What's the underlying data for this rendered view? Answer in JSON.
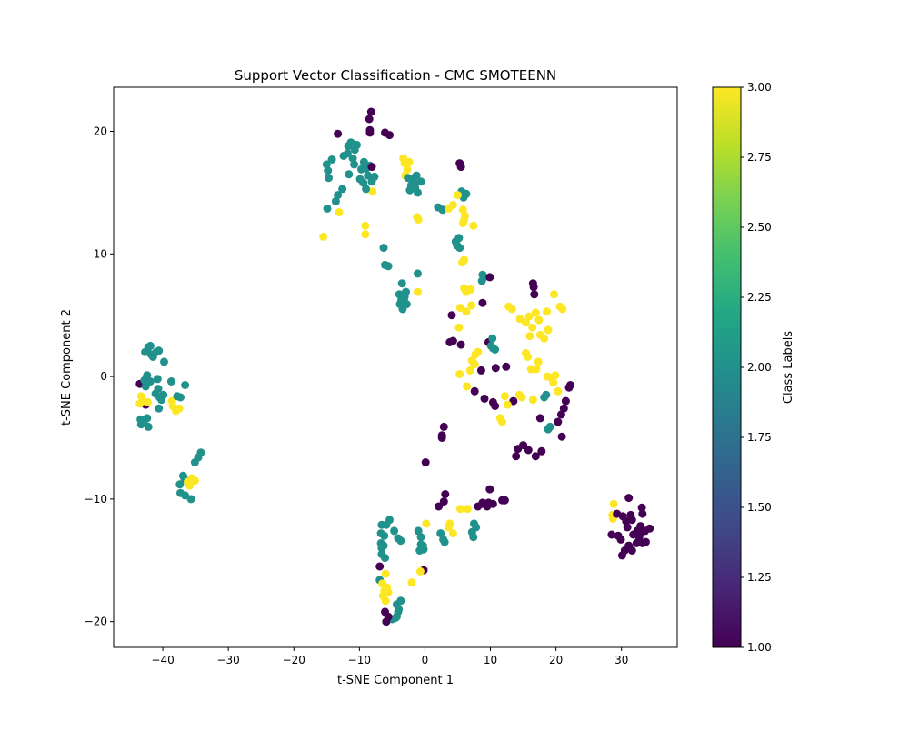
{
  "chart_data": {
    "type": "scatter",
    "title": "Support Vector Classification - CMC SMOTEENN",
    "xlabel": "t-SNE Component 1",
    "ylabel": "t-SNE Component 2",
    "xlim": [
      -47.5,
      38.5
    ],
    "ylim": [
      -22.1,
      23.6
    ],
    "xticks": [
      -40,
      -30,
      -20,
      -10,
      0,
      10,
      20,
      30
    ],
    "yticks": [
      -20,
      -10,
      0,
      10,
      20
    ],
    "xtick_labels": [
      "−40",
      "−30",
      "−20",
      "−10",
      "0",
      "10",
      "20",
      "30"
    ],
    "ytick_labels": [
      "−20",
      "−10",
      "0",
      "10",
      "20"
    ],
    "grid": false,
    "colormap": "viridis",
    "colors": {
      "class_1": "#440154",
      "class_2": "#21918c",
      "class_3": "#fde725"
    },
    "colorbar": {
      "label": "Class Labels",
      "range": [
        1.0,
        3.0
      ],
      "ticks": [
        1.0,
        1.25,
        1.5,
        1.75,
        2.0,
        2.25,
        2.5,
        2.75,
        3.0
      ],
      "tick_labels": [
        "1.00",
        "1.25",
        "1.50",
        "1.75",
        "2.00",
        "2.25",
        "2.50",
        "2.75",
        "3.00"
      ]
    },
    "points": [
      [
        -43.5,
        -0.6,
        1
      ],
      [
        -42.6,
        -2.3,
        1
      ],
      [
        -43.3,
        -1.6,
        3
      ],
      [
        -43.5,
        -2.2,
        3
      ],
      [
        -43.0,
        -2.0,
        3
      ],
      [
        -42.3,
        -2.1,
        3
      ],
      [
        -38.5,
        -2.4,
        3
      ],
      [
        -38.0,
        -2.8,
        3
      ],
      [
        -37.5,
        -2.6,
        3
      ],
      [
        -38.6,
        -2.0,
        3
      ],
      [
        -42.7,
        2.0,
        2
      ],
      [
        -42.2,
        2.4,
        2
      ],
      [
        -41.8,
        1.8,
        2
      ],
      [
        -41.0,
        2.0,
        2
      ],
      [
        -40.6,
        2.1,
        2
      ],
      [
        -41.9,
        2.5,
        2
      ],
      [
        -39.8,
        1.2,
        2
      ],
      [
        -41.5,
        1.6,
        2
      ],
      [
        -42.8,
        -0.3,
        2
      ],
      [
        -42.4,
        0.1,
        2
      ],
      [
        -41.9,
        -0.4,
        2
      ],
      [
        -42.6,
        -0.8,
        2
      ],
      [
        -40.8,
        -0.2,
        2
      ],
      [
        -40.7,
        -1.0,
        2
      ],
      [
        -41.1,
        -1.4,
        2
      ],
      [
        -40.5,
        -1.7,
        2
      ],
      [
        -40.2,
        -1.9,
        2
      ],
      [
        -39.9,
        -1.5,
        2
      ],
      [
        -40.6,
        -2.6,
        2
      ],
      [
        -38.7,
        -0.4,
        2
      ],
      [
        -37.3,
        -1.7,
        2
      ],
      [
        -36.6,
        -0.7,
        2
      ],
      [
        -37.8,
        -1.6,
        2
      ],
      [
        -43.4,
        -3.5,
        2
      ],
      [
        -42.9,
        -3.8,
        2
      ],
      [
        -42.4,
        -3.4,
        2
      ],
      [
        -42.2,
        -4.1,
        2
      ],
      [
        -43.3,
        -3.9,
        2
      ],
      [
        -34.2,
        -6.2,
        2
      ],
      [
        -34.6,
        -6.6,
        2
      ],
      [
        -35.1,
        -7.0,
        2
      ],
      [
        -36.9,
        -8.1,
        2
      ],
      [
        -37.4,
        -8.8,
        2
      ],
      [
        -37.3,
        -9.5,
        2
      ],
      [
        -36.6,
        -9.7,
        2
      ],
      [
        -35.7,
        -10.0,
        2
      ],
      [
        -36.7,
        -8.4,
        2
      ],
      [
        -35.6,
        -8.3,
        3
      ],
      [
        -36.2,
        -8.6,
        3
      ],
      [
        -35.1,
        -8.5,
        3
      ],
      [
        -35.9,
        -8.9,
        3
      ],
      [
        -15.5,
        11.4,
        3
      ],
      [
        -13.1,
        13.4,
        3
      ],
      [
        -9.1,
        12.3,
        3
      ],
      [
        -9.1,
        11.6,
        3
      ],
      [
        -8.0,
        15.1,
        3
      ],
      [
        -3.3,
        17.8,
        3
      ],
      [
        -3.1,
        17.4,
        3
      ],
      [
        -2.7,
        16.9,
        3
      ],
      [
        -2.4,
        17.5,
        3
      ],
      [
        -3.0,
        16.4,
        3
      ],
      [
        -1.2,
        13.0,
        3
      ],
      [
        -1.0,
        12.8,
        3
      ],
      [
        -1.1,
        6.9,
        3
      ],
      [
        -14.8,
        16.8,
        2
      ],
      [
        -15.0,
        17.3,
        2
      ],
      [
        -14.7,
        16.2,
        2
      ],
      [
        -14.2,
        17.7,
        2
      ],
      [
        -14.9,
        13.7,
        2
      ],
      [
        -13.6,
        14.3,
        2
      ],
      [
        -13.3,
        14.8,
        2
      ],
      [
        -12.6,
        15.3,
        2
      ],
      [
        -12.4,
        18.0,
        2
      ],
      [
        -11.7,
        18.8,
        2
      ],
      [
        -11.3,
        19.1,
        2
      ],
      [
        -10.7,
        18.5,
        2
      ],
      [
        -11.8,
        18.2,
        2
      ],
      [
        -11.0,
        17.8,
        2
      ],
      [
        -10.8,
        17.3,
        2
      ],
      [
        -9.7,
        16.9,
        2
      ],
      [
        -9.3,
        17.5,
        2
      ],
      [
        -8.9,
        17.0,
        2
      ],
      [
        -8.4,
        17.2,
        2
      ],
      [
        -8.7,
        16.4,
        2
      ],
      [
        -9.4,
        15.8,
        2
      ],
      [
        -9.0,
        15.3,
        2
      ],
      [
        -8.1,
        15.9,
        2
      ],
      [
        -7.7,
        16.3,
        2
      ],
      [
        -9.9,
        16.1,
        2
      ],
      [
        -10.4,
        18.9,
        2
      ],
      [
        -11.6,
        16.5,
        2
      ],
      [
        -2.6,
        16.2,
        2
      ],
      [
        -2.1,
        15.6,
        2
      ],
      [
        -1.9,
        16.1,
        2
      ],
      [
        -1.3,
        16.4,
        2
      ],
      [
        -1.5,
        15.4,
        2
      ],
      [
        -1.1,
        15.0,
        2
      ],
      [
        -0.6,
        15.9,
        2
      ],
      [
        -2.3,
        15.2,
        2
      ],
      [
        -1.6,
        15.8,
        2
      ],
      [
        -6.3,
        10.5,
        2
      ],
      [
        -6.1,
        9.1,
        2
      ],
      [
        -5.6,
        9.0,
        2
      ],
      [
        -1.1,
        8.4,
        2
      ],
      [
        -3.5,
        7.6,
        2
      ],
      [
        -3.9,
        6.7,
        2
      ],
      [
        -3.6,
        6.2,
        2
      ],
      [
        -3.1,
        6.5,
        2
      ],
      [
        -2.8,
        5.9,
        2
      ],
      [
        -3.4,
        5.5,
        2
      ],
      [
        -2.9,
        6.9,
        2
      ],
      [
        -3.8,
        5.9,
        2
      ],
      [
        -3.2,
        6.2,
        2
      ],
      [
        -8.2,
        21.6,
        1
      ],
      [
        -8.5,
        21.0,
        1
      ],
      [
        -8.4,
        20.1,
        1
      ],
      [
        -8.4,
        19.9,
        1
      ],
      [
        -13.3,
        19.8,
        1
      ],
      [
        -6.1,
        19.9,
        1
      ],
      [
        -5.4,
        19.7,
        1
      ],
      [
        -8.1,
        17.1,
        1
      ],
      [
        2.0,
        13.8,
        2
      ],
      [
        2.7,
        13.6,
        2
      ],
      [
        4.7,
        11.0,
        2
      ],
      [
        5.2,
        11.3,
        2
      ],
      [
        5.3,
        10.5,
        2
      ],
      [
        4.9,
        10.7,
        2
      ],
      [
        5.6,
        15.1,
        2
      ],
      [
        6.3,
        14.9,
        2
      ],
      [
        5.9,
        14.6,
        2
      ],
      [
        8.8,
        8.3,
        2
      ],
      [
        8.7,
        7.8,
        2
      ],
      [
        9.0,
        8.1,
        2
      ],
      [
        5.3,
        17.4,
        1
      ],
      [
        5.5,
        17.1,
        1
      ],
      [
        9.9,
        8.1,
        1
      ],
      [
        8.8,
        6.0,
        1
      ],
      [
        4.1,
        5.0,
        1
      ],
      [
        3.8,
        2.8,
        1
      ],
      [
        4.3,
        2.9,
        1
      ],
      [
        5.5,
        2.6,
        1
      ],
      [
        9.7,
        2.8,
        1
      ],
      [
        3.6,
        13.7,
        3
      ],
      [
        4.3,
        14.0,
        3
      ],
      [
        5.0,
        14.8,
        3
      ],
      [
        5.8,
        13.6,
        3
      ],
      [
        6.1,
        13.1,
        3
      ],
      [
        5.8,
        12.5,
        3
      ],
      [
        6.0,
        12.8,
        3
      ],
      [
        7.4,
        12.3,
        3
      ],
      [
        5.7,
        9.3,
        3
      ],
      [
        6.0,
        9.5,
        3
      ],
      [
        6.0,
        7.2,
        3
      ],
      [
        6.3,
        6.9,
        3
      ],
      [
        7.0,
        7.1,
        3
      ],
      [
        7.1,
        5.8,
        3
      ],
      [
        5.4,
        5.6,
        3
      ],
      [
        6.3,
        5.3,
        3
      ],
      [
        5.2,
        4.0,
        3
      ],
      [
        10.3,
        3.1,
        2
      ],
      [
        10.4,
        2.3,
        2
      ],
      [
        10.7,
        2.2,
        2
      ],
      [
        10.1,
        2.5,
        2
      ],
      [
        18.5,
        -1.5,
        2
      ],
      [
        18.2,
        -1.7,
        2
      ],
      [
        19.1,
        -4.1,
        2
      ],
      [
        18.8,
        -4.3,
        2
      ],
      [
        16.5,
        7.6,
        1
      ],
      [
        16.6,
        7.3,
        1
      ],
      [
        16.7,
        6.7,
        1
      ],
      [
        12.4,
        0.8,
        1
      ],
      [
        10.8,
        0.7,
        1
      ],
      [
        8.6,
        0.5,
        1
      ],
      [
        9.1,
        -1.8,
        1
      ],
      [
        7.6,
        -1.2,
        1
      ],
      [
        10.7,
        -2.4,
        1
      ],
      [
        10.4,
        -2.1,
        1
      ],
      [
        13.5,
        -2.0,
        1
      ],
      [
        17.6,
        -3.4,
        1
      ],
      [
        14.2,
        -5.9,
        1
      ],
      [
        13.9,
        -6.5,
        1
      ],
      [
        15.0,
        -5.6,
        1
      ],
      [
        15.8,
        -6.0,
        1
      ],
      [
        16.9,
        -6.5,
        1
      ],
      [
        17.8,
        -6.1,
        1
      ],
      [
        20.3,
        -3.7,
        1
      ],
      [
        20.8,
        -3.1,
        1
      ],
      [
        21.2,
        -2.6,
        1
      ],
      [
        21.5,
        -2.0,
        1
      ],
      [
        22.2,
        -0.7,
        1
      ],
      [
        22.0,
        -0.9,
        1
      ],
      [
        20.9,
        -4.9,
        1
      ],
      [
        12.8,
        5.7,
        3
      ],
      [
        13.3,
        5.5,
        3
      ],
      [
        14.5,
        4.7,
        3
      ],
      [
        15.4,
        4.4,
        3
      ],
      [
        15.9,
        4.9,
        3
      ],
      [
        16.9,
        5.2,
        3
      ],
      [
        17.4,
        4.6,
        3
      ],
      [
        16.4,
        4.0,
        3
      ],
      [
        18.6,
        5.3,
        3
      ],
      [
        19.7,
        6.7,
        3
      ],
      [
        20.6,
        5.7,
        3
      ],
      [
        21.0,
        5.5,
        3
      ],
      [
        16.0,
        3.3,
        3
      ],
      [
        17.6,
        3.4,
        3
      ],
      [
        18.2,
        3.1,
        3
      ],
      [
        18.8,
        3.8,
        3
      ],
      [
        15.4,
        1.9,
        3
      ],
      [
        15.7,
        1.6,
        3
      ],
      [
        17.3,
        1.2,
        3
      ],
      [
        16.2,
        0.6,
        3
      ],
      [
        17.0,
        0.6,
        3
      ],
      [
        18.7,
        0.0,
        3
      ],
      [
        19.3,
        -0.1,
        3
      ],
      [
        19.9,
        0.1,
        3
      ],
      [
        19.6,
        -0.5,
        3
      ],
      [
        20.3,
        -1.2,
        3
      ],
      [
        7.7,
        1.8,
        3
      ],
      [
        7.2,
        1.3,
        3
      ],
      [
        7.6,
        1.0,
        3
      ],
      [
        6.9,
        0.5,
        3
      ],
      [
        5.3,
        0.2,
        3
      ],
      [
        6.4,
        -0.8,
        3
      ],
      [
        12.2,
        -1.6,
        3
      ],
      [
        12.6,
        -2.3,
        3
      ],
      [
        14.4,
        -1.5,
        3
      ],
      [
        14.8,
        -1.7,
        3
      ],
      [
        16.5,
        -1.9,
        3
      ],
      [
        11.5,
        -3.4,
        3
      ],
      [
        11.8,
        -3.7,
        3
      ],
      [
        8.1,
        2.0,
        3
      ],
      [
        -5.4,
        -11.7,
        2
      ],
      [
        -5.9,
        -12.1,
        2
      ],
      [
        -6.6,
        -12.1,
        2
      ],
      [
        -6.7,
        -12.8,
        2
      ],
      [
        -6.2,
        -13.0,
        2
      ],
      [
        -6.7,
        -13.6,
        2
      ],
      [
        -6.6,
        -14.0,
        2
      ],
      [
        -6.3,
        -13.8,
        2
      ],
      [
        -6.6,
        -14.5,
        2
      ],
      [
        -6.9,
        -16.6,
        2
      ],
      [
        -6.1,
        -14.8,
        2
      ],
      [
        -4.7,
        -12.6,
        2
      ],
      [
        -4.1,
        -13.2,
        2
      ],
      [
        -3.7,
        -13.4,
        2
      ],
      [
        -1.0,
        -12.6,
        2
      ],
      [
        -0.6,
        -13.1,
        2
      ],
      [
        -0.6,
        -13.7,
        2
      ],
      [
        -0.2,
        -14.1,
        2
      ],
      [
        -0.8,
        -14.2,
        2
      ],
      [
        -0.3,
        -13.8,
        2
      ],
      [
        2.4,
        -12.8,
        2
      ],
      [
        2.8,
        -13.3,
        2
      ],
      [
        3.0,
        -13.5,
        2
      ],
      [
        7.5,
        -12.0,
        2
      ],
      [
        7.8,
        -12.3,
        2
      ],
      [
        7.2,
        -12.7,
        2
      ],
      [
        7.4,
        -13.1,
        2
      ],
      [
        -4.3,
        -18.6,
        2
      ],
      [
        -4.0,
        -19.0,
        2
      ],
      [
        -3.7,
        -18.3,
        2
      ],
      [
        -4.1,
        -19.2,
        2
      ],
      [
        -4.3,
        -19.6,
        2
      ],
      [
        -4.5,
        -19.7,
        2
      ],
      [
        -5.0,
        -19.8,
        2
      ],
      [
        -6.9,
        -15.5,
        1
      ],
      [
        -5.6,
        -19.6,
        1
      ],
      [
        -5.9,
        -20.0,
        1
      ],
      [
        -6.1,
        -19.2,
        1
      ],
      [
        -0.2,
        -15.8,
        1
      ],
      [
        0.1,
        -7.0,
        1
      ],
      [
        2.9,
        -4.1,
        1
      ],
      [
        2.6,
        -4.8,
        1
      ],
      [
        2.6,
        -5.0,
        1
      ],
      [
        3.1,
        -9.6,
        1
      ],
      [
        2.9,
        -10.2,
        1
      ],
      [
        2.1,
        -10.6,
        1
      ],
      [
        8.1,
        -10.6,
        1
      ],
      [
        8.8,
        -10.3,
        1
      ],
      [
        9.5,
        -10.6,
        1
      ],
      [
        9.7,
        -10.3,
        1
      ],
      [
        10.4,
        -10.4,
        1
      ],
      [
        9.9,
        -9.2,
        1
      ],
      [
        11.8,
        -10.1,
        1
      ],
      [
        12.2,
        -10.1,
        1
      ],
      [
        8.9,
        -10.4,
        1
      ],
      [
        -6.0,
        -16.1,
        3
      ],
      [
        -6.5,
        -16.9,
        3
      ],
      [
        -6.2,
        -17.5,
        3
      ],
      [
        -6.4,
        -17.9,
        3
      ],
      [
        -5.8,
        -17.2,
        3
      ],
      [
        -5.6,
        -17.6,
        3
      ],
      [
        -6.0,
        -18.3,
        3
      ],
      [
        -2.0,
        -16.8,
        3
      ],
      [
        -0.7,
        -15.9,
        3
      ],
      [
        0.2,
        -12.0,
        3
      ],
      [
        3.6,
        -12.3,
        3
      ],
      [
        3.8,
        -12.0,
        3
      ],
      [
        4.3,
        -12.8,
        3
      ],
      [
        5.4,
        -10.8,
        3
      ],
      [
        6.5,
        -10.8,
        3
      ],
      [
        28.8,
        -10.4,
        3
      ],
      [
        28.6,
        -11.3,
        3
      ],
      [
        28.7,
        -11.6,
        3
      ],
      [
        28.5,
        -12.9,
        1
      ],
      [
        29.3,
        -11.2,
        1
      ],
      [
        29.9,
        -13.3,
        1
      ],
      [
        30.2,
        -11.4,
        1
      ],
      [
        30.7,
        -11.8,
        1
      ],
      [
        30.9,
        -12.3,
        1
      ],
      [
        31.4,
        -11.3,
        1
      ],
      [
        31.6,
        -11.7,
        1
      ],
      [
        31.1,
        -9.9,
        1
      ],
      [
        31.8,
        -12.9,
        1
      ],
      [
        32.4,
        -12.6,
        1
      ],
      [
        32.9,
        -12.2,
        1
      ],
      [
        33.6,
        -12.6,
        1
      ],
      [
        34.3,
        -12.4,
        1
      ],
      [
        33.1,
        -10.7,
        1
      ],
      [
        33.2,
        -11.2,
        1
      ],
      [
        30.1,
        -14.6,
        1
      ],
      [
        30.5,
        -14.2,
        1
      ],
      [
        31.1,
        -13.8,
        1
      ],
      [
        31.6,
        -14.2,
        1
      ],
      [
        32.3,
        -13.6,
        1
      ],
      [
        32.7,
        -13.1,
        1
      ],
      [
        33.2,
        -13.6,
        1
      ],
      [
        33.7,
        -13.5,
        1
      ],
      [
        32.8,
        -12.8,
        1
      ],
      [
        29.5,
        -13.0,
        1
      ]
    ]
  }
}
